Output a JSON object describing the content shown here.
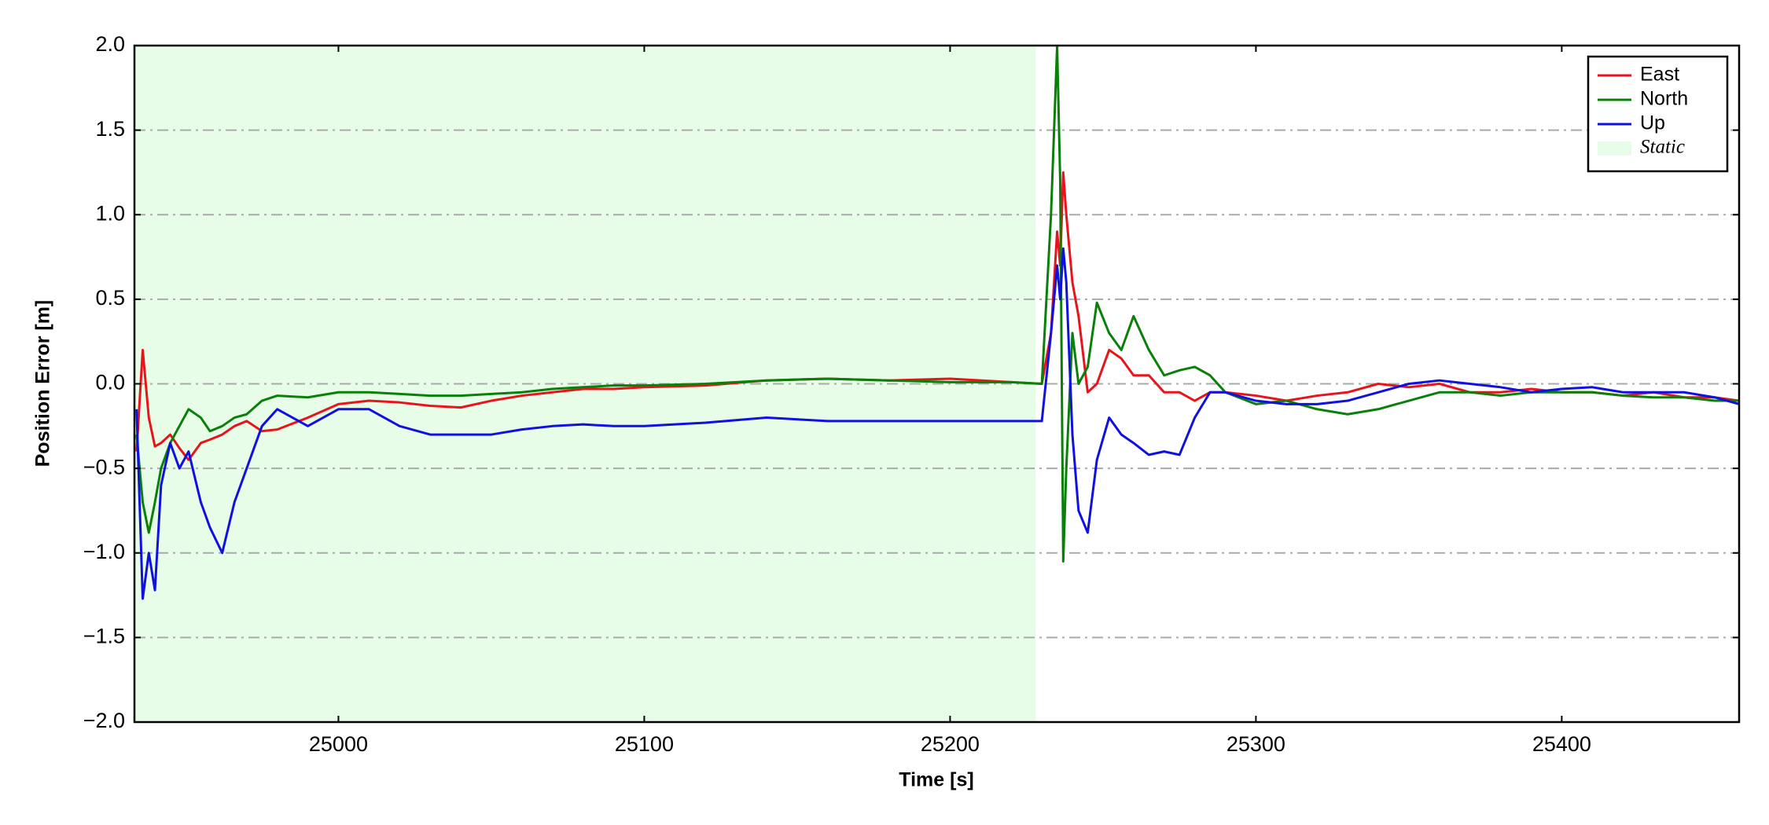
{
  "chart_data": {
    "type": "line",
    "xlabel": "Time [s]",
    "ylabel": "Position Error [m]",
    "x": [
      24934,
      24936,
      24938,
      24940,
      24942,
      24945,
      24948,
      24951,
      24955,
      24958,
      24962,
      24966,
      24970,
      24975,
      24980,
      24990,
      25000,
      25010,
      25020,
      25030,
      25040,
      25050,
      25060,
      25070,
      25080,
      25090,
      25100,
      25120,
      25140,
      25160,
      25180,
      25200,
      25220,
      25230,
      25233,
      25235,
      25236,
      25237,
      25238,
      25240,
      25242,
      25245,
      25248,
      25252,
      25256,
      25260,
      25265,
      25270,
      25275,
      25280,
      25285,
      25290,
      25300,
      25310,
      25320,
      25330,
      25340,
      25350,
      25360,
      25370,
      25380,
      25390,
      25400,
      25410,
      25420,
      25430,
      25440,
      25450,
      25458
    ],
    "series": [
      {
        "name": "East",
        "color": "#e8141c",
        "values": [
          -0.4,
          0.2,
          -0.2,
          -0.37,
          -0.35,
          -0.3,
          -0.38,
          -0.45,
          -0.35,
          -0.33,
          -0.3,
          -0.25,
          -0.22,
          -0.28,
          -0.27,
          -0.2,
          -0.12,
          -0.1,
          -0.11,
          -0.13,
          -0.14,
          -0.1,
          -0.07,
          -0.05,
          -0.03,
          -0.03,
          -0.02,
          -0.01,
          0.02,
          0.03,
          0.02,
          0.03,
          0.01,
          0.0,
          0.3,
          0.9,
          0.7,
          1.25,
          1.0,
          0.6,
          0.4,
          -0.05,
          0.0,
          0.2,
          0.15,
          0.05,
          0.05,
          -0.05,
          -0.05,
          -0.1,
          -0.05,
          -0.05,
          -0.07,
          -0.1,
          -0.07,
          -0.05,
          0.0,
          -0.02,
          0.0,
          -0.05,
          -0.05,
          -0.03,
          -0.05,
          -0.05,
          -0.07,
          -0.05,
          -0.08,
          -0.08,
          -0.1
        ]
      },
      {
        "name": "North",
        "color": "#0a800a",
        "values": [
          -0.3,
          -0.7,
          -0.88,
          -0.7,
          -0.5,
          -0.35,
          -0.25,
          -0.15,
          -0.2,
          -0.28,
          -0.25,
          -0.2,
          -0.18,
          -0.1,
          -0.07,
          -0.08,
          -0.05,
          -0.05,
          -0.06,
          -0.07,
          -0.07,
          -0.06,
          -0.05,
          -0.03,
          -0.02,
          -0.01,
          -0.01,
          0.0,
          0.02,
          0.03,
          0.02,
          0.01,
          0.01,
          0.0,
          1.0,
          2.0,
          1.2,
          -1.05,
          -0.5,
          0.3,
          0.0,
          0.1,
          0.48,
          0.3,
          0.2,
          0.4,
          0.2,
          0.05,
          0.08,
          0.1,
          0.05,
          -0.05,
          -0.12,
          -0.1,
          -0.15,
          -0.18,
          -0.15,
          -0.1,
          -0.05,
          -0.05,
          -0.07,
          -0.05,
          -0.05,
          -0.05,
          -0.07,
          -0.08,
          -0.08,
          -0.1,
          -0.1
        ]
      },
      {
        "name": "Up",
        "color": "#1010e0",
        "values": [
          -0.15,
          -1.27,
          -1.0,
          -1.22,
          -0.6,
          -0.35,
          -0.5,
          -0.4,
          -0.7,
          -0.85,
          -1.0,
          -0.7,
          -0.5,
          -0.25,
          -0.15,
          -0.25,
          -0.15,
          -0.15,
          -0.25,
          -0.3,
          -0.3,
          -0.3,
          -0.27,
          -0.25,
          -0.24,
          -0.25,
          -0.25,
          -0.23,
          -0.2,
          -0.22,
          -0.22,
          -0.22,
          -0.22,
          -0.22,
          0.3,
          0.7,
          0.5,
          0.8,
          0.6,
          -0.3,
          -0.75,
          -0.88,
          -0.45,
          -0.2,
          -0.3,
          -0.35,
          -0.42,
          -0.4,
          -0.42,
          -0.2,
          -0.05,
          -0.05,
          -0.1,
          -0.12,
          -0.12,
          -0.1,
          -0.05,
          0.0,
          0.02,
          0.0,
          -0.02,
          -0.05,
          -0.03,
          -0.02,
          -0.05,
          -0.05,
          -0.05,
          -0.08,
          -0.12
        ]
      }
    ],
    "spans": [
      {
        "name": "Static",
        "start": 24933,
        "end": 25228,
        "color": "#e8fde8"
      }
    ],
    "xlim": [
      24933.3,
      25458
    ],
    "xticks": [
      25000,
      25100,
      25200,
      25300,
      25400
    ],
    "ylim": [
      -2,
      2
    ],
    "yticks": [
      {
        "value": -2,
        "label": "−2.0"
      },
      {
        "value": -1.5,
        "label": "−1.5"
      },
      {
        "value": -1,
        "label": "−1.0"
      },
      {
        "value": -0.5,
        "label": "−0.5"
      },
      {
        "value": 0,
        "label": "0.0"
      },
      {
        "value": 0.5,
        "label": "0.5"
      },
      {
        "value": 1,
        "label": "1.0"
      },
      {
        "value": 1.5,
        "label": "1.5"
      },
      {
        "value": 2,
        "label": "2.0"
      }
    ],
    "grid": true,
    "legend": "upper right"
  }
}
